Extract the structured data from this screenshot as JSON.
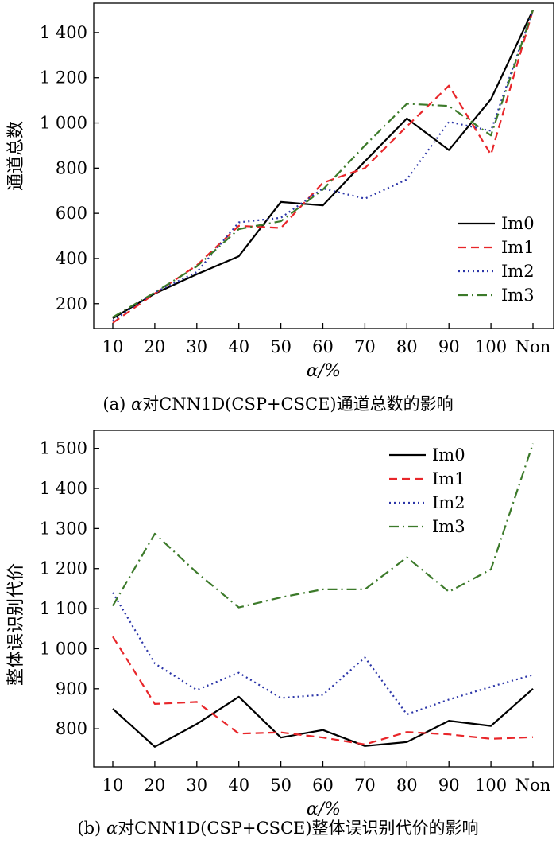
{
  "chart_data": [
    {
      "type": "line",
      "categories": [
        "10",
        "20",
        "30",
        "40",
        "50",
        "60",
        "70",
        "80",
        "90",
        "100",
        "Non"
      ],
      "xlabel": "α/%",
      "ylabel": "通道总数",
      "ylim": [
        90,
        1530
      ],
      "yticks": [
        200,
        400,
        600,
        800,
        1000,
        1200,
        1400
      ],
      "ytick_labels": [
        "200",
        "400",
        "600",
        "800",
        "1 000",
        "1 200",
        "1 400"
      ],
      "legend_position": "bottom-right",
      "grid": false,
      "caption_prefix": "(a) ",
      "caption_alpha": "α",
      "caption_rest": "对CNN1D(CSP+CSCE)通道总数的影响",
      "series": [
        {
          "name": "Im0",
          "color": "#000000",
          "dash": "",
          "values": [
            135,
            245,
            330,
            410,
            650,
            635,
            830,
            1020,
            880,
            1105,
            1500
          ]
        },
        {
          "name": "Im1",
          "color": "#e8262a",
          "dash": "10,6",
          "values": [
            115,
            245,
            370,
            545,
            535,
            735,
            800,
            985,
            1165,
            860,
            1500
          ]
        },
        {
          "name": "Im2",
          "color": "#2b35a8",
          "dash": "2,4",
          "values": [
            125,
            250,
            340,
            560,
            580,
            710,
            665,
            750,
            1005,
            965,
            1500
          ]
        },
        {
          "name": "Im3",
          "color": "#3c7a2a",
          "dash": "12,5,2,5",
          "values": [
            140,
            250,
            365,
            530,
            565,
            705,
            900,
            1085,
            1075,
            945,
            1500
          ]
        }
      ]
    },
    {
      "type": "line",
      "categories": [
        "10",
        "20",
        "30",
        "40",
        "50",
        "60",
        "70",
        "80",
        "90",
        "100",
        "Non"
      ],
      "xlabel": "α/%",
      "ylabel": "整体误识别代价",
      "ylim": [
        705,
        1545
      ],
      "yticks": [
        800,
        900,
        1000,
        1100,
        1200,
        1300,
        1400,
        1500
      ],
      "ytick_labels": [
        "800",
        "900",
        "1 000",
        "1 100",
        "1 200",
        "1 300",
        "1 400",
        "1 500"
      ],
      "legend_position": "top-center",
      "grid": false,
      "caption_prefix": "(b) ",
      "caption_alpha": "α",
      "caption_rest": "对CNN1D(CSP+CSCE)整体误识别代价的影响",
      "series": [
        {
          "name": "Im0",
          "color": "#000000",
          "dash": "",
          "values": [
            850,
            755,
            812,
            880,
            778,
            797,
            757,
            767,
            820,
            807,
            900
          ]
        },
        {
          "name": "Im1",
          "color": "#e8262a",
          "dash": "10,6",
          "values": [
            1030,
            862,
            867,
            788,
            791,
            778,
            761,
            792,
            786,
            775,
            779
          ]
        },
        {
          "name": "Im2",
          "color": "#2b35a8",
          "dash": "2,4",
          "values": [
            1140,
            963,
            897,
            940,
            877,
            885,
            978,
            836,
            873,
            905,
            935
          ]
        },
        {
          "name": "Im3",
          "color": "#3c7a2a",
          "dash": "12,5,2,5",
          "values": [
            1107,
            1287,
            1190,
            1103,
            1128,
            1148,
            1148,
            1228,
            1142,
            1198,
            1512
          ]
        }
      ]
    }
  ]
}
